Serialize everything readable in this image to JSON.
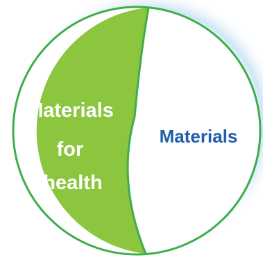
{
  "diagram": {
    "left_label_lines": [
      "Materials",
      "for",
      "health"
    ],
    "right_label": "Materials",
    "colors": {
      "left_fill": "#8CC63F",
      "right_fill": "#FFFFFF",
      "outline": "#3DAE49",
      "left_text": "#FFFFFF",
      "right_text": "#1F5FA8",
      "glow": "#C9E3F4"
    }
  }
}
